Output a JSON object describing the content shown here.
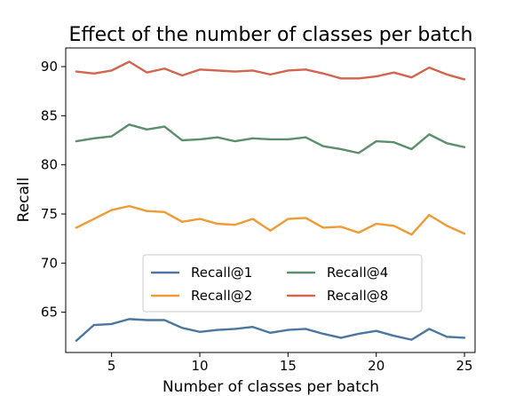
{
  "chart_data": {
    "type": "line",
    "title": "Effect of the number of classes per batch",
    "xlabel": "Number of classes per batch",
    "ylabel": "Recall",
    "xlim": [
      2.4,
      25.6
    ],
    "ylim": [
      60.9,
      91.9
    ],
    "xticks": [
      5,
      10,
      15,
      20,
      25
    ],
    "yticks": [
      65,
      70,
      75,
      80,
      85,
      90
    ],
    "grid": false,
    "legend_position": "lower-center",
    "x": [
      3,
      4,
      5,
      6,
      7,
      8,
      9,
      10,
      11,
      12,
      13,
      14,
      15,
      16,
      17,
      18,
      19,
      20,
      21,
      22,
      23,
      24,
      25
    ],
    "series": [
      {
        "name": "Recall@1",
        "color": "#4a76a0",
        "values": [
          62.1,
          63.7,
          63.8,
          64.3,
          64.2,
          64.2,
          63.4,
          63.0,
          63.2,
          63.3,
          63.5,
          62.9,
          63.2,
          63.3,
          62.8,
          62.4,
          62.8,
          63.1,
          62.6,
          62.2,
          63.3,
          62.5,
          62.4
        ]
      },
      {
        "name": "Recall@2",
        "color": "#f19a34",
        "values": [
          73.6,
          74.5,
          75.4,
          75.8,
          75.3,
          75.2,
          74.2,
          74.5,
          74.0,
          73.9,
          74.5,
          73.3,
          74.5,
          74.6,
          73.6,
          73.7,
          73.1,
          74.0,
          73.8,
          72.9,
          74.9,
          73.8,
          73.0
        ]
      },
      {
        "name": "Recall@4",
        "color": "#5b8e6a",
        "values": [
          82.4,
          82.7,
          82.9,
          84.1,
          83.6,
          83.9,
          82.5,
          82.6,
          82.8,
          82.4,
          82.7,
          82.6,
          82.6,
          82.8,
          81.9,
          81.6,
          81.2,
          82.4,
          82.3,
          81.6,
          83.1,
          82.2,
          81.8
        ]
      },
      {
        "name": "Recall@8",
        "color": "#d1654d",
        "values": [
          89.5,
          89.3,
          89.6,
          90.5,
          89.4,
          89.8,
          89.1,
          89.7,
          89.6,
          89.5,
          89.6,
          89.2,
          89.6,
          89.7,
          89.3,
          88.8,
          88.8,
          89.0,
          89.4,
          88.9,
          89.9,
          89.2,
          88.7
        ]
      }
    ]
  }
}
